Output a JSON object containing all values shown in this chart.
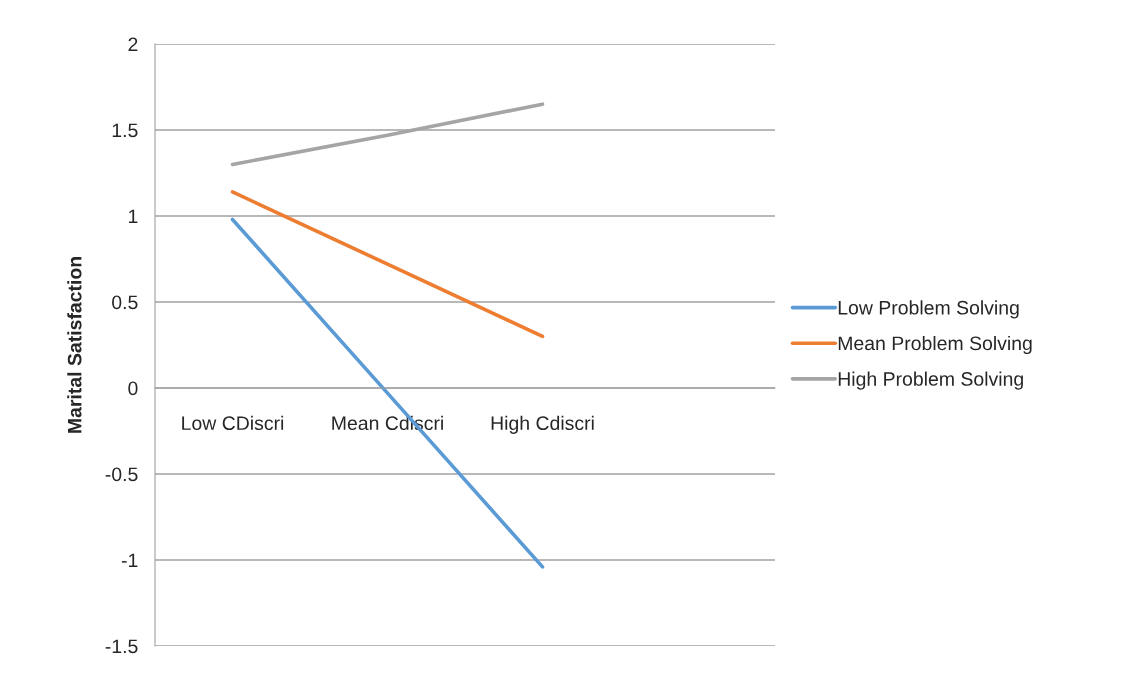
{
  "chart_data": {
    "type": "line",
    "ylabel": "Marital Satisfaction",
    "categories": [
      "Low CDiscri",
      "Mean Cdiscri",
      "High Cdiscri",
      null
    ],
    "series": [
      {
        "name": "Low Problem Solving",
        "color": "#5b9bd5",
        "values": [
          0.98,
          -0.03,
          -1.04,
          null
        ]
      },
      {
        "name": "Mean Problem Solving",
        "color": "#ed7d31",
        "values": [
          1.14,
          0.72,
          0.3,
          null
        ]
      },
      {
        "name": "High Problem Solving",
        "color": "#a5a5a5",
        "values": [
          1.3,
          1.47,
          1.65,
          null
        ]
      }
    ],
    "ylim": [
      -1.5,
      2
    ],
    "yticks": [
      -1.5,
      -1,
      -0.5,
      0,
      0.5,
      1,
      1.5,
      2
    ],
    "grid": "y",
    "legend": "right",
    "marker": "none",
    "line_style": "solid"
  }
}
